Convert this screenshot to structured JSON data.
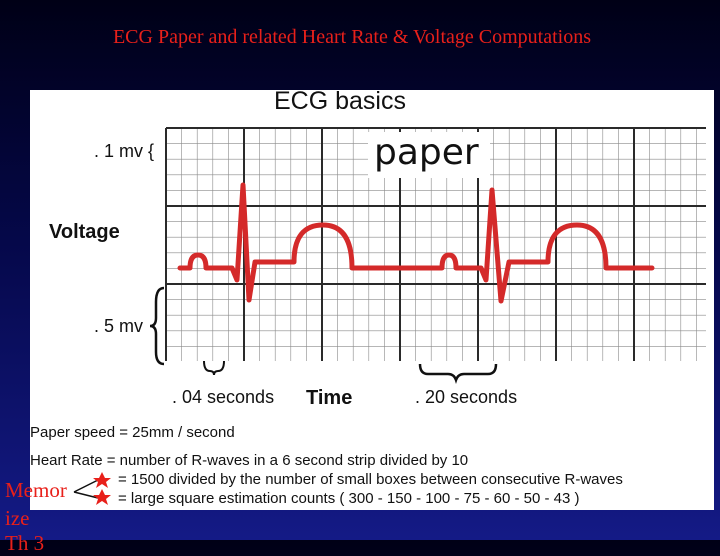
{
  "slide": {
    "title": "ECG Paper and related Heart Rate & Voltage Computations"
  },
  "figure": {
    "heading": "ECG  basics",
    "paper_label": "paper",
    "voltage_small_label": ". 1 mv {",
    "voltage_label": "Voltage",
    "voltage_large_label": ". 5 mv",
    "small_box_time_label": ". 04 seconds",
    "time_label": "Time",
    "large_box_time_label": ". 20 seconds",
    "ecg_trace_color": "#d42a2a",
    "grid_color": "#2a2a2a"
  },
  "notes": {
    "paper_speed": "Paper speed = 25mm / second",
    "heart_rate_line1": "Heart Rate = number of  R-waves in a 6 second strip divided by 10",
    "heart_rate_line2": "= 1500 divided by the number of small boxes between consecutive R-waves",
    "heart_rate_line3": "= large square estimation counts ( 300 - 150 - 100 - 75 - 60 - 50 - 43 )",
    "star_color": "#e8201a",
    "star_icon": "star-icon"
  },
  "side_note": {
    "line1": "Memor",
    "line2": "ize",
    "line3": "Th    3"
  }
}
